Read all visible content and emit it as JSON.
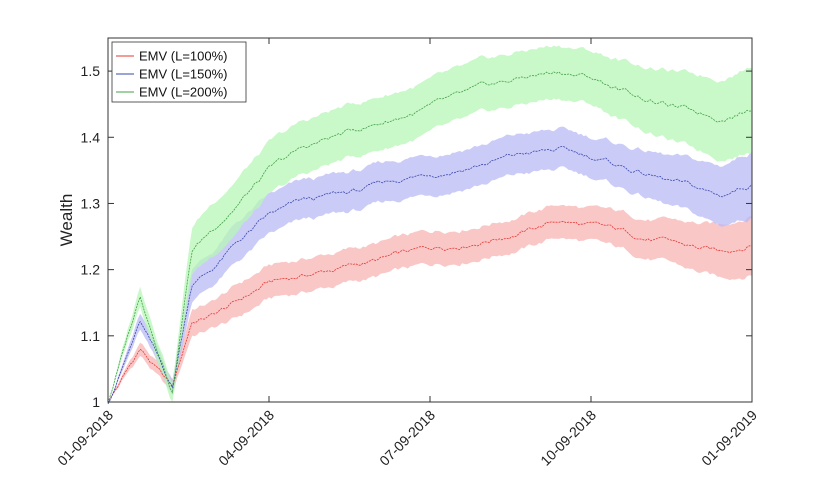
{
  "chart_data": {
    "type": "area",
    "title": "",
    "xlabel": "",
    "ylabel": "Wealth",
    "x_ticks": [
      "01-09-2018",
      "04-09-2018",
      "07-09-2018",
      "10-09-2018",
      "01-09-2019"
    ],
    "x_range": [
      "01-09-2018",
      "01-09-2019"
    ],
    "y_ticks": [
      "1",
      "1.1",
      "1.2",
      "1.3",
      "1.4",
      "1.5"
    ],
    "ylim": [
      1.0,
      1.55
    ],
    "grid": false,
    "legend_position": "top-left",
    "legend": [
      "EMV (L=100%)",
      "EMV (L=150%)",
      "EMV (L=200%)"
    ],
    "x": [
      0,
      0.05,
      0.1,
      0.13,
      0.16,
      0.2,
      0.25,
      0.3,
      0.35,
      0.4,
      0.45,
      0.5,
      0.55,
      0.6,
      0.65,
      0.7,
      0.75,
      0.8,
      0.85,
      0.9,
      0.95,
      1.0
    ],
    "series": [
      {
        "legend_index": 0,
        "color": "#e53935",
        "band_color": "#f8b4b4",
        "values": [
          1.0,
          1.08,
          1.02,
          1.12,
          1.13,
          1.15,
          1.18,
          1.19,
          1.2,
          1.21,
          1.22,
          1.23,
          1.24,
          1.25,
          1.26,
          1.275,
          1.265,
          1.255,
          1.245,
          1.235,
          1.225,
          1.24
        ],
        "band": [
          0.0,
          0.01,
          0.01,
          0.02,
          0.02,
          0.025,
          0.025,
          0.025,
          0.025,
          0.025,
          0.025,
          0.025,
          0.025,
          0.025,
          0.025,
          0.025,
          0.025,
          0.028,
          0.03,
          0.035,
          0.04,
          0.045
        ]
      },
      {
        "legend_index": 1,
        "color": "#3949ab",
        "band_color": "#b9b9f5",
        "values": [
          1.0,
          1.12,
          1.02,
          1.18,
          1.2,
          1.24,
          1.28,
          1.3,
          1.31,
          1.32,
          1.335,
          1.345,
          1.355,
          1.365,
          1.375,
          1.38,
          1.37,
          1.355,
          1.34,
          1.325,
          1.31,
          1.33
        ],
        "band": [
          0.0,
          0.012,
          0.012,
          0.025,
          0.025,
          0.03,
          0.03,
          0.03,
          0.03,
          0.03,
          0.03,
          0.03,
          0.03,
          0.03,
          0.03,
          0.03,
          0.03,
          0.033,
          0.036,
          0.04,
          0.045,
          0.05
        ]
      },
      {
        "legend_index": 2,
        "color": "#43a047",
        "band_color": "#b7f5b7",
        "values": [
          1.0,
          1.16,
          1.02,
          1.23,
          1.26,
          1.3,
          1.35,
          1.38,
          1.4,
          1.415,
          1.43,
          1.445,
          1.46,
          1.475,
          1.49,
          1.5,
          1.49,
          1.47,
          1.455,
          1.44,
          1.43,
          1.445
        ],
        "band": [
          0.0,
          0.015,
          0.015,
          0.035,
          0.04,
          0.04,
          0.04,
          0.04,
          0.04,
          0.04,
          0.04,
          0.04,
          0.04,
          0.04,
          0.04,
          0.04,
          0.04,
          0.045,
          0.05,
          0.055,
          0.06,
          0.065
        ]
      }
    ]
  }
}
